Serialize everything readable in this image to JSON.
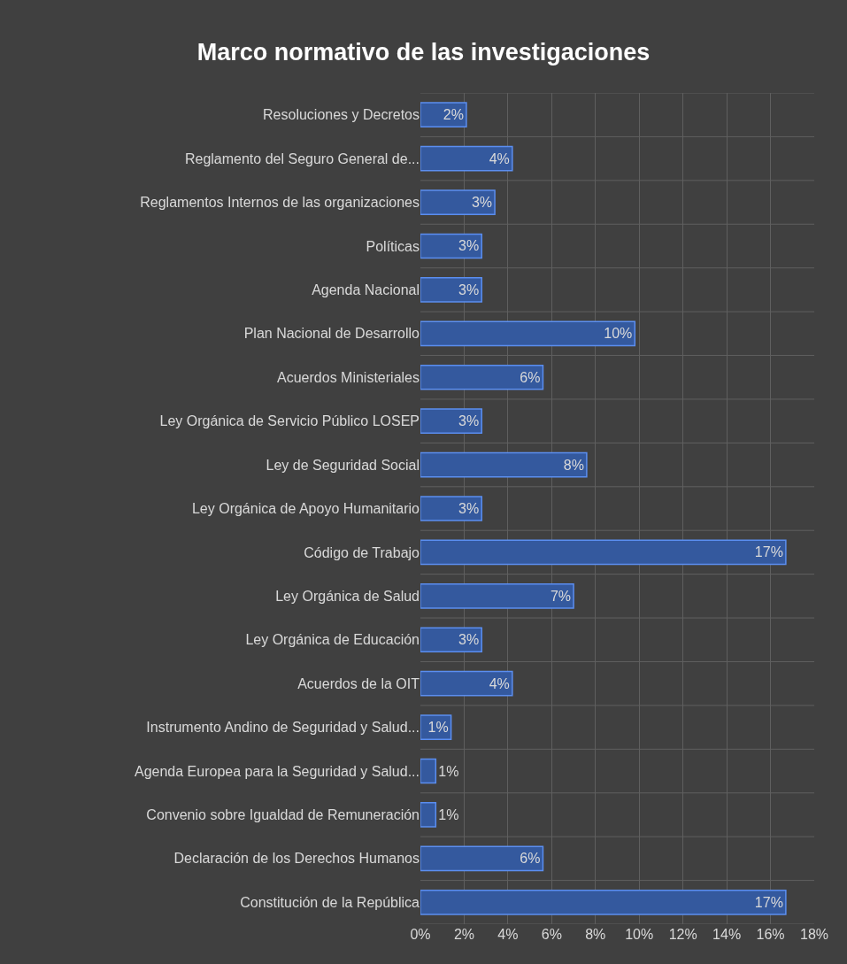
{
  "chart_data": {
    "type": "bar",
    "orientation": "horizontal",
    "title": "Marco normativo de las investigaciones",
    "categories": [
      "Resoluciones y Decretos",
      "Reglamento del Seguro General de...",
      "Reglamentos Internos de las organizaciones",
      "Políticas",
      "Agenda Nacional",
      "Plan Nacional de Desarrollo",
      "Acuerdos Ministeriales",
      "Ley Orgánica de Servicio Público LOSEP",
      "Ley de Seguridad Social",
      "Ley Orgánica de Apoyo Humanitario",
      "Código de Trabajo",
      "Ley Orgánica de Salud",
      "Ley Orgánica de Educación",
      "Acuerdos de la OIT",
      "Instrumento Andino de Seguridad y Salud...",
      "Agenda Europea para la Seguridad y Salud...",
      "Convenio sobre Igualdad de Remuneración",
      "Declaración de los Derechos Humanos",
      "Constitución de la República"
    ],
    "values": [
      2.1,
      4.2,
      3.4,
      2.8,
      2.8,
      9.8,
      5.6,
      2.8,
      7.6,
      2.8,
      16.7,
      7.0,
      2.8,
      4.2,
      1.4,
      0.7,
      0.7,
      5.6,
      16.7
    ],
    "value_labels": [
      "2%",
      "4%",
      "3%",
      "3%",
      "3%",
      "10%",
      "6%",
      "3%",
      "8%",
      "3%",
      "17%",
      "7%",
      "3%",
      "4%",
      "1%",
      "1%",
      "1%",
      "6%",
      "17%"
    ],
    "color": "#34599e",
    "xlim": [
      0,
      18
    ],
    "xticks": [
      {
        "value": 0,
        "label": "0%"
      },
      {
        "value": 2,
        "label": "2%"
      },
      {
        "value": 4,
        "label": "4%"
      },
      {
        "value": 6,
        "label": "6%"
      },
      {
        "value": 8,
        "label": "8%"
      },
      {
        "value": 10,
        "label": "10%"
      },
      {
        "value": 12,
        "label": "12%"
      },
      {
        "value": 14,
        "label": "14%"
      },
      {
        "value": 16,
        "label": "16%"
      },
      {
        "value": 18,
        "label": "18%"
      }
    ],
    "grid": true
  }
}
